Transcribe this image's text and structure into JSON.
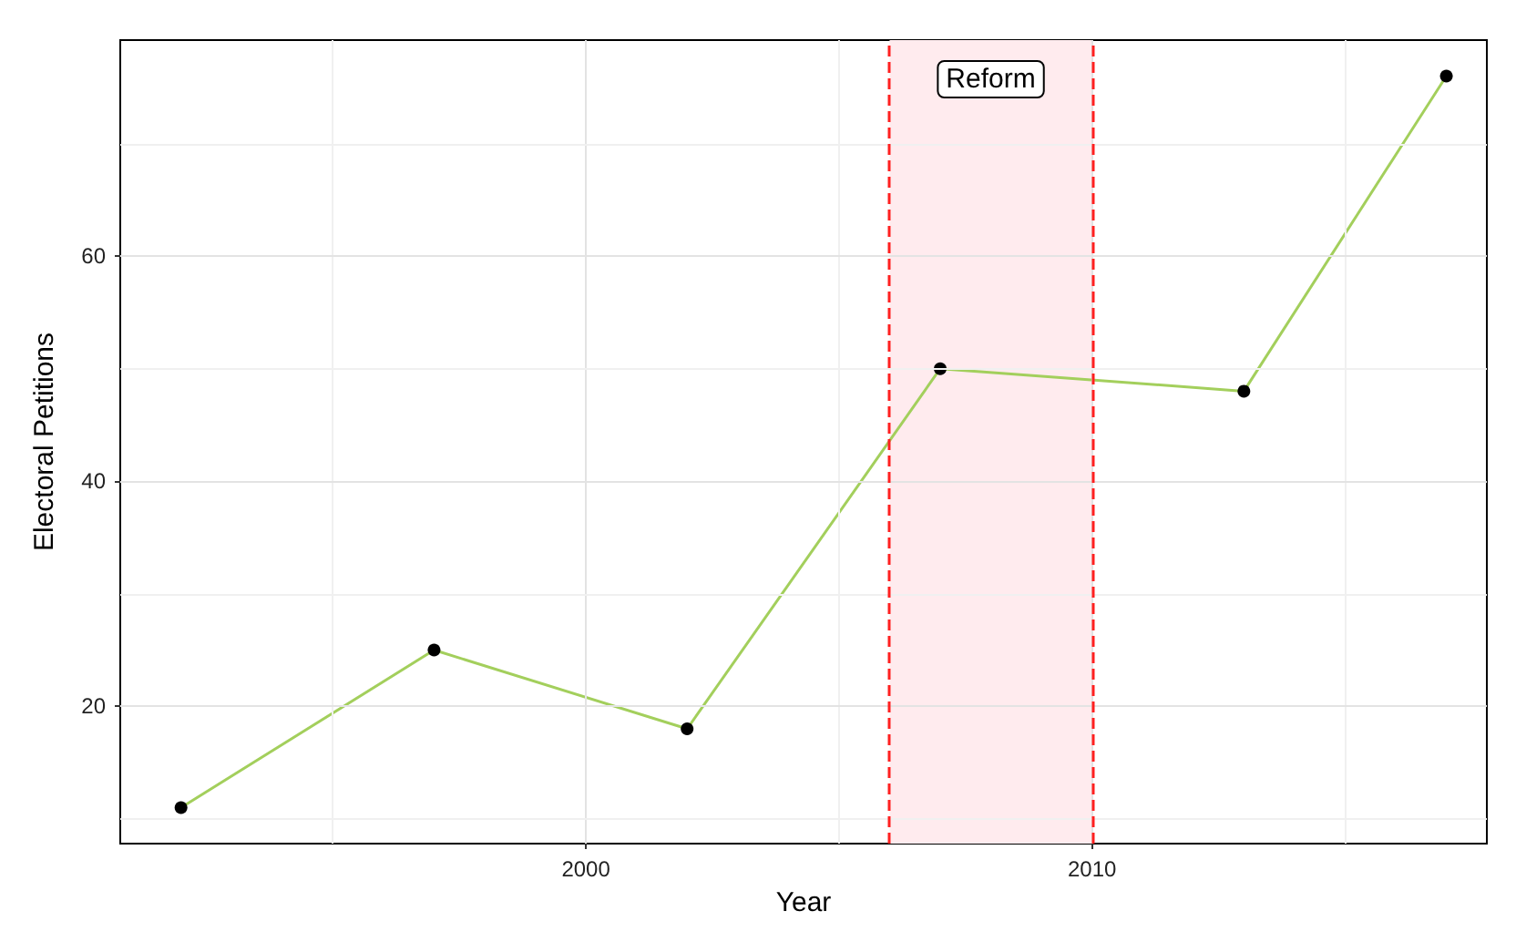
{
  "chart_data": {
    "type": "line",
    "xlabel": "Year",
    "ylabel": "Electoral Petitions",
    "x": [
      1992,
      1997,
      2002,
      2007,
      2013,
      2017
    ],
    "series": [
      {
        "color": "#a3cf5c",
        "values": [
          11,
          25,
          18,
          50,
          48,
          76
        ]
      }
    ],
    "marker": "circle",
    "line_style": "solid",
    "grid": true,
    "xlim": [
      1990.8,
      2017.8
    ],
    "ylim": [
      7.8,
      79.2
    ],
    "xticks": [
      {
        "value": 1995,
        "label": null
      },
      2000,
      {
        "value": 2005,
        "label": null
      },
      2010,
      {
        "value": 2015,
        "label": null
      }
    ],
    "yticks": [
      {
        "value": 10,
        "label": null
      },
      20,
      {
        "value": 30,
        "label": null
      },
      40,
      {
        "value": 50,
        "label": null
      },
      60,
      {
        "value": 70,
        "label": null
      }
    ],
    "ref_lines": [
      {
        "axis": "x",
        "value": 2006,
        "color": "#ff2020",
        "line_style": "dashed"
      },
      {
        "axis": "x",
        "value": 2010,
        "color": "#ff2020",
        "line_style": "dashed"
      }
    ],
    "bands": [
      {
        "axis": "x",
        "from": 2006,
        "to": 2010,
        "label": "Reform",
        "color": "#ffebee"
      }
    ]
  }
}
